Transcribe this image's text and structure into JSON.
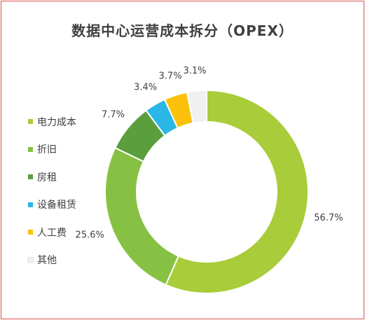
{
  "chart_data": {
    "type": "pie",
    "donut": true,
    "title": "数据中心运营成本拆分（OPEX）",
    "legend_position": "left",
    "categories": [
      "电力成本",
      "折旧",
      "房租",
      "设备租赁",
      "人工费",
      "其他"
    ],
    "values": [
      56.7,
      25.6,
      7.7,
      3.4,
      3.7,
      3.1
    ],
    "data_labels": [
      "56.7%",
      "25.6%",
      "7.7%",
      "3.4%",
      "3.7%",
      "3.1%"
    ],
    "colors": [
      "#a8cc3a",
      "#86c143",
      "#5b9e3e",
      "#2ab7e8",
      "#fbc10a",
      "#f0f0f0"
    ]
  }
}
